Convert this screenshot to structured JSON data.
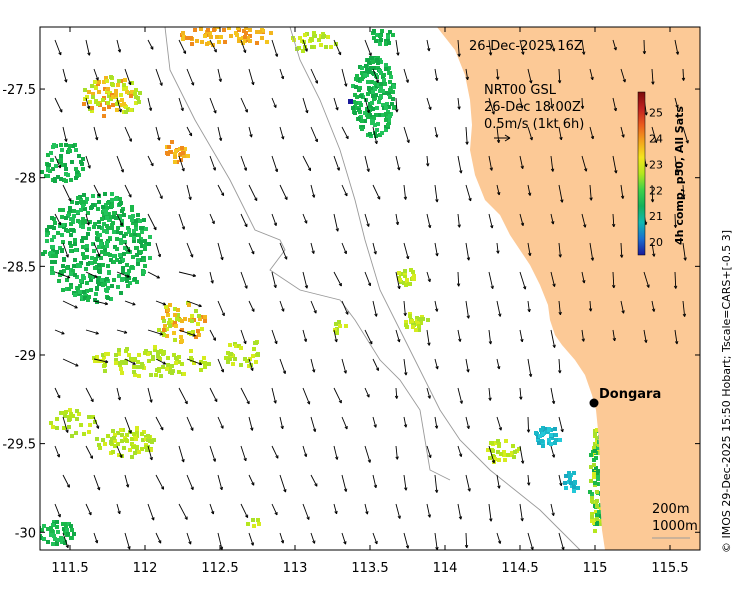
{
  "map": {
    "datetime": "26-Dec-2025 16Z",
    "product_line1": "NRT00 GSL",
    "product_line2": "26-Dec 18:00Z",
    "velocity_scale": "0.5m/s (1kt 6h)",
    "city": "Dongara",
    "isobath_1": "200m",
    "isobath_2": "1000m",
    "credit": "© IMOS 29-Dec-2025 15:50 Hobart; Tscale=CARS+[-0.5 3]",
    "colorbar_title": "4h comp, p50, All Sats",
    "colorbar_ticks": [
      "20",
      "21",
      "22",
      "23",
      "24",
      "25"
    ],
    "colorbar_range": [
      19.5,
      25.8
    ],
    "colors": {
      "land": "#fcc996",
      "sst_cool": "#1ab84a",
      "sst_mid": "#b5e61d",
      "sst_warm": "#f2b51d",
      "sst_hot": "#f08a1c",
      "sst_cold": "#1ab8c8",
      "isobath": "#9a9a9a",
      "arrow": "#000000"
    }
  },
  "x_axis": {
    "ticks": [
      "111.5",
      "112",
      "112.5",
      "113",
      "113.5",
      "114",
      "114.5",
      "115",
      "115.5"
    ],
    "tick_values": [
      111.5,
      112,
      112.5,
      113,
      113.5,
      114,
      114.5,
      115,
      115.5
    ],
    "range": [
      111.3,
      115.7
    ]
  },
  "y_axis": {
    "ticks": [
      "-27.5",
      "-28",
      "-28.5",
      "-29",
      "-29.5",
      "-30"
    ],
    "tick_values": [
      -27.5,
      -28,
      -28.5,
      -29,
      -29.5,
      -30
    ],
    "range": [
      -30.1,
      -27.15
    ]
  }
}
